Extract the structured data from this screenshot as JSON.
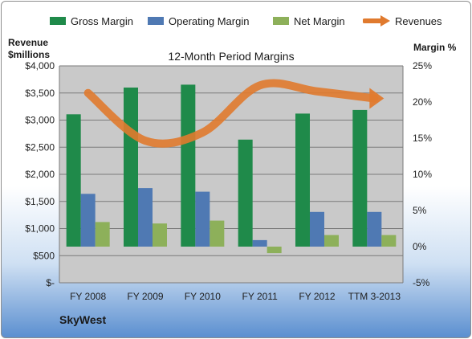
{
  "legend": {
    "gross_margin": "Gross Margin",
    "operating_margin": "Operating Margin",
    "net_margin": "Net Margin",
    "revenues": "Revenues"
  },
  "left_axis_title": [
    "Revenue",
    "$millions"
  ],
  "right_axis_title": "Margin %",
  "company": "SkyWest",
  "colors": {
    "gross_margin": "#1f8a4a",
    "operating_margin": "#4f79b3",
    "net_margin": "#8db05a",
    "revenues": "#e07a2e",
    "plot_background": "#c9c9c9"
  },
  "chart_data": {
    "type": "bar",
    "title": "12-Month Period Margins",
    "categories": [
      "FY 2008",
      "FY 2009",
      "FY 2010",
      "FY 2011",
      "FY 2012",
      "TTM 3-2013"
    ],
    "series": [
      {
        "name": "Gross Margin",
        "axis": "right",
        "values": [
          18.3,
          22.0,
          22.4,
          14.8,
          18.4,
          18.9
        ]
      },
      {
        "name": "Operating Margin",
        "axis": "right",
        "values": [
          7.3,
          8.1,
          7.6,
          0.9,
          4.8,
          4.8
        ]
      },
      {
        "name": "Net Margin",
        "axis": "right",
        "values": [
          3.4,
          3.2,
          3.6,
          -0.9,
          1.6,
          1.6
        ]
      },
      {
        "name": "Revenues",
        "type": "line",
        "axis": "left",
        "values": [
          3500,
          2620,
          2770,
          3640,
          3530,
          3400
        ]
      }
    ],
    "left_axis": {
      "ylim": [
        0,
        4000
      ],
      "ticks": [
        "$-",
        "$500",
        "$1,000",
        "$1,500",
        "$2,000",
        "$2,500",
        "$3,000",
        "$3,500",
        "$4,000"
      ]
    },
    "right_axis": {
      "ylim": [
        -5,
        25
      ],
      "ticks": [
        "-5%",
        "0%",
        "5%",
        "10%",
        "15%",
        "20%",
        "25%"
      ]
    },
    "legend_position": "top",
    "grid": true
  }
}
